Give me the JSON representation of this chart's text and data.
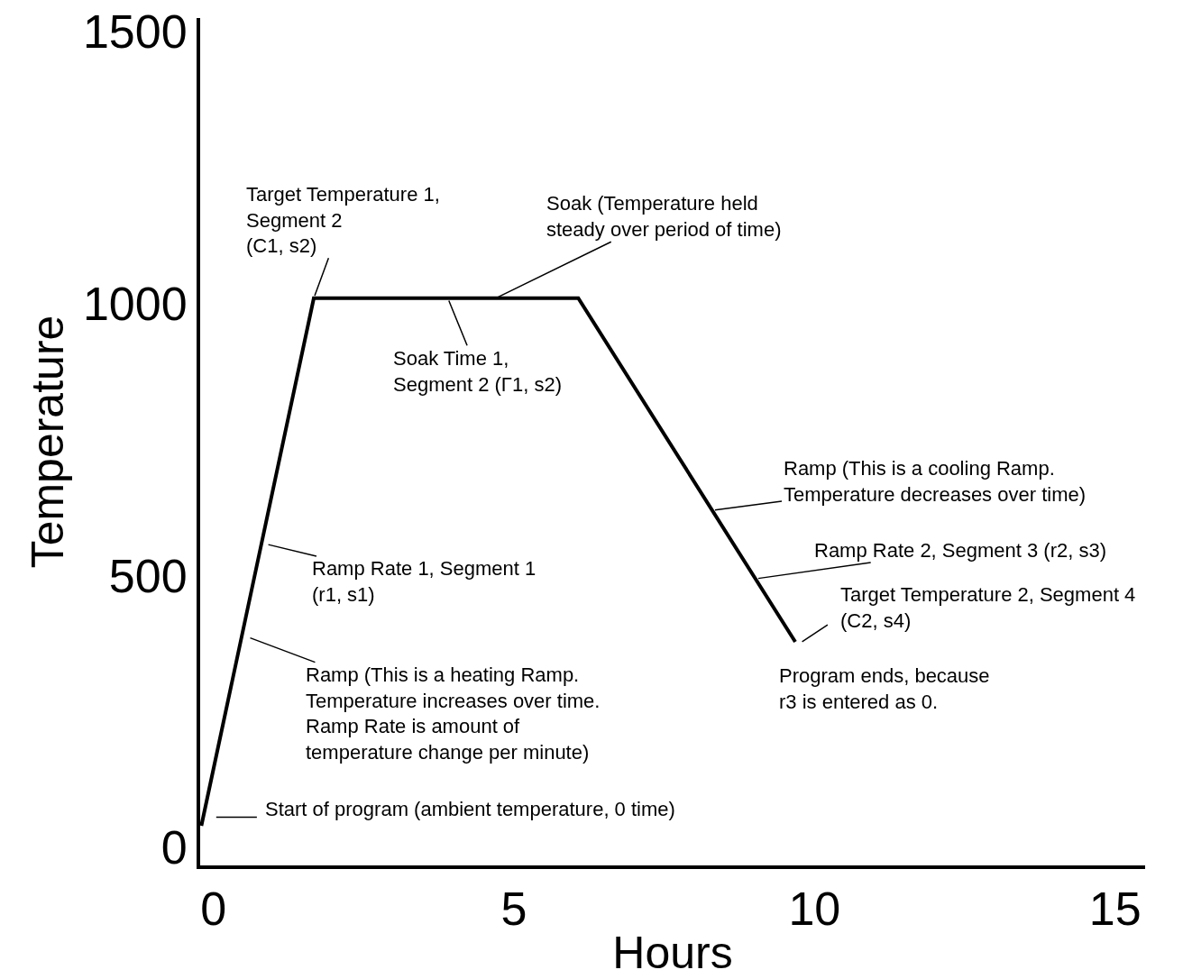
{
  "chart_data": {
    "type": "line",
    "xlabel": "Hours",
    "ylabel": "Temperature",
    "x": [
      -0.2,
      1.67,
      6.07,
      9.68
    ],
    "values": [
      40,
      1010,
      1010,
      378
    ],
    "color": "#000000",
    "xlim": [
      -0.22,
      15.5
    ],
    "ylim": [
      -33,
      1525
    ],
    "xticks": [
      0,
      5,
      10,
      15
    ],
    "yticks": [
      0,
      500,
      1000,
      1500
    ],
    "grid": false,
    "marker": "none",
    "line_style": "solid",
    "annotations": [
      {
        "text": "Target Temperature 1,\nSegment 2\n(C1, s2)",
        "x": 1.67,
        "y": 1010
      },
      {
        "text": "Soak (Temperature held\nsteady over period of time)",
        "x": 4.7,
        "y": 1010
      },
      {
        "text": "Soak Time 1,\nSegment 2 (Γ1, s2)",
        "x": 3.9,
        "y": 1010
      },
      {
        "text": "Ramp (This is a cooling Ramp.\nTemperature decreases over time)",
        "x": 8.3,
        "y": 620
      },
      {
        "text": "Ramp Rate 2, Segment 3 (r2, s3)",
        "x": 9.02,
        "y": 494
      },
      "Target Temperature 2, Segment 4\n(C2, s4)",
      "Program ends, because\nr3 is entered as 0.",
      {
        "text": "Ramp Rate 1, Segment 1\n(r1, s1)",
        "x": 0.87,
        "y": 558
      },
      {
        "text": "Ramp (This is a heating Ramp.\nTemperature increases over time.\nRamp Rate is amount of\ntemperature change per minute)",
        "x": 0.57,
        "y": 387
      },
      "Start of program (ambient temperature, 0 time)"
    ]
  }
}
